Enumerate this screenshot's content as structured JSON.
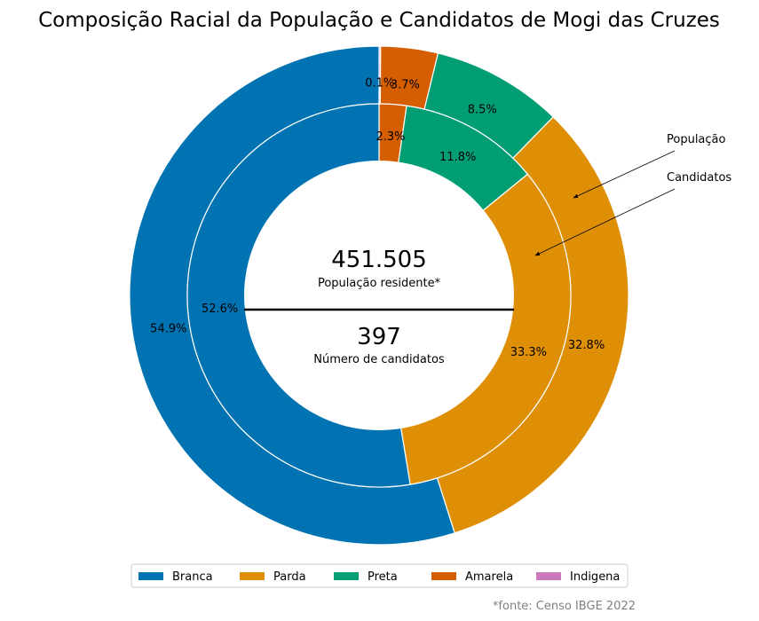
{
  "chart_data": {
    "type": "pie",
    "title": "Composição Racial da População e Candidatos de Mogi das Cruzes",
    "categories": [
      "Branca",
      "Parda",
      "Preta",
      "Amarela",
      "Indigena"
    ],
    "colors": [
      "#0173b2",
      "#de8f05",
      "#029e73",
      "#d55e00",
      "#cc78bc"
    ],
    "order": [
      "Indigena",
      "Amarela",
      "Preta",
      "Parda",
      "Branca"
    ],
    "series": [
      {
        "name": "População",
        "ring": "outer",
        "values": {
          "Branca": 54.9,
          "Parda": 32.8,
          "Preta": 8.5,
          "Amarela": 3.7,
          "Indigena": 0.1
        },
        "labels": {
          "Branca": "54.9%",
          "Parda": "32.8%",
          "Preta": "8.5%",
          "Amarela": "3.7%",
          "Indigena": "0.1%"
        }
      },
      {
        "name": "Candidatos",
        "ring": "inner",
        "values": {
          "Branca": 52.6,
          "Parda": 33.3,
          "Preta": 11.8,
          "Amarela": 2.3,
          "Indigena": 0.0
        },
        "labels": {
          "Branca": "52.6%",
          "Parda": "33.3%",
          "Preta": "11.8%",
          "Amarela": "2.3%",
          "Indigena": ""
        }
      }
    ],
    "center": {
      "top_value": "451.505",
      "top_caption": "População residente*",
      "bottom_value": "397",
      "bottom_caption": "Número de candidatos"
    },
    "annotations": [
      "População",
      "Candidatos"
    ],
    "legend": {
      "placement": "bottom-center",
      "entries": [
        "Branca",
        "Parda",
        "Preta",
        "Amarela",
        "Indigena"
      ]
    },
    "footnote": "*fonte: Censo IBGE 2022"
  }
}
